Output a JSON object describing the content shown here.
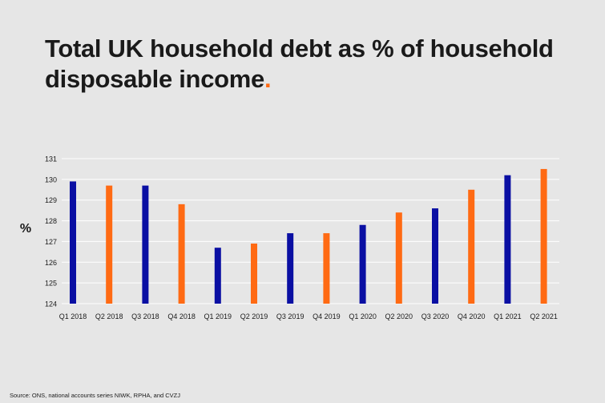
{
  "title_text": "Total UK household debt as % of household disposable income",
  "title_dot": ".",
  "source": "Source: ONS, national accounts series NIWK, RPHA, and CVZJ",
  "colors": {
    "navy": "#0a0fa3",
    "orange": "#ff6a13",
    "background": "#e6e6e6",
    "grid": "#ffffff"
  },
  "chart_data": {
    "type": "bar",
    "title": "Total UK household debt as % of household disposable income",
    "xlabel": "",
    "ylabel": "%",
    "ylim": [
      124,
      131
    ],
    "yticks": [
      124,
      125,
      126,
      127,
      128,
      129,
      130,
      131
    ],
    "grid": true,
    "categories": [
      "Q1 2018",
      "Q2 2018",
      "Q3 2018",
      "Q4 2018",
      "Q1 2019",
      "Q2 2019",
      "Q3 2019",
      "Q4 2019",
      "Q1 2020",
      "Q2 2020",
      "Q3 2020",
      "Q4 2020",
      "Q1 2021",
      "Q2 2021"
    ],
    "values": [
      129.9,
      129.7,
      129.7,
      128.8,
      126.7,
      126.9,
      127.4,
      127.4,
      127.8,
      128.4,
      128.6,
      129.5,
      130.2,
      130.5
    ],
    "bar_colors": [
      "navy",
      "orange",
      "navy",
      "orange",
      "navy",
      "orange",
      "navy",
      "orange",
      "navy",
      "orange",
      "navy",
      "orange",
      "navy",
      "orange"
    ]
  }
}
